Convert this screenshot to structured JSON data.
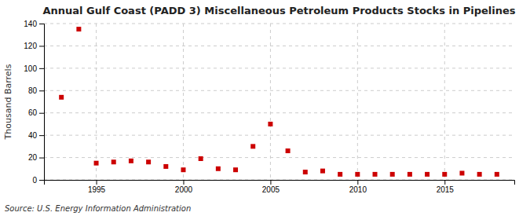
{
  "chart_data": {
    "type": "scatter",
    "title": "Annual Gulf Coast (PADD 3) Miscellaneous Petroleum Products Stocks in Pipelines",
    "ylabel": "Thousand Barrels",
    "source": "Source: U.S. Energy Information Administration",
    "x": [
      1993,
      1994,
      1995,
      1996,
      1997,
      1998,
      1999,
      2000,
      2001,
      2002,
      2003,
      2004,
      2005,
      2006,
      2007,
      2008,
      2009,
      2010,
      2011,
      2012,
      2013,
      2014,
      2015,
      2016,
      2017,
      2018
    ],
    "values": [
      74,
      135,
      15,
      16,
      17,
      16,
      12,
      9,
      19,
      10,
      9,
      30,
      50,
      26,
      7,
      8,
      5,
      5,
      5,
      5,
      5,
      5,
      5,
      6,
      5,
      5
    ],
    "color": "#cc0000",
    "marker": "square",
    "xlim": [
      1992.0,
      2019.0
    ],
    "xticks": [
      1995,
      2000,
      2005,
      2010,
      2015
    ],
    "ylim": [
      0,
      140
    ],
    "yticks": [
      0,
      20,
      40,
      60,
      80,
      100,
      120,
      140
    ],
    "grid": true
  }
}
